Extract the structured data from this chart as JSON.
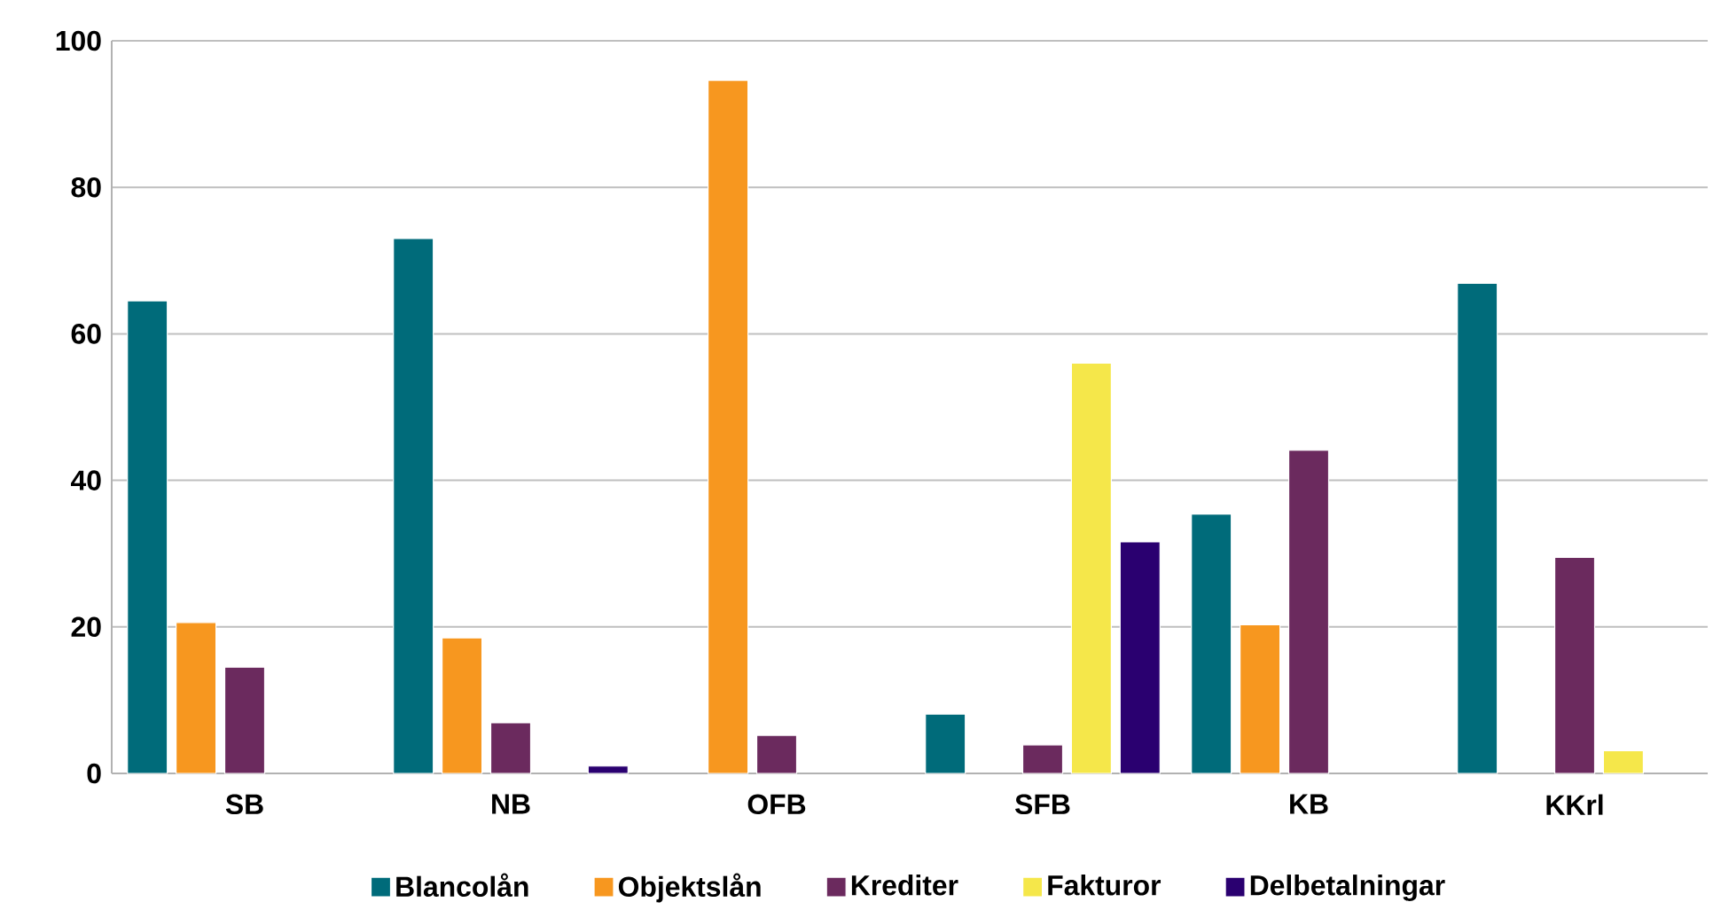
{
  "chart_data": {
    "type": "bar",
    "categories": [
      "SB",
      "NB",
      "OFB",
      "SFB",
      "KB",
      "KKrl"
    ],
    "series": [
      {
        "name": "Blancolån",
        "color": "#006b7a",
        "values": [
          64.5,
          73.0,
          null,
          8.1,
          35.4,
          66.9
        ]
      },
      {
        "name": "Objektslån",
        "color": "#f7971f",
        "values": [
          20.6,
          18.5,
          94.6,
          null,
          20.3,
          null
        ]
      },
      {
        "name": "Krediter",
        "color": "#6b2a5e",
        "values": [
          14.5,
          6.9,
          5.2,
          3.9,
          44.1,
          29.5
        ]
      },
      {
        "name": "Fakturor",
        "color": "#f5e74a",
        "values": [
          null,
          null,
          null,
          56.0,
          null,
          3.1
        ]
      },
      {
        "name": "Delbetalningar",
        "color": "#2a0070",
        "values": [
          null,
          1.0,
          null,
          31.6,
          null,
          null
        ]
      }
    ],
    "ylim": [
      0,
      100
    ],
    "yticks": [
      0,
      20,
      40,
      60,
      80,
      100
    ],
    "grid": "y",
    "legend": "bottom"
  }
}
